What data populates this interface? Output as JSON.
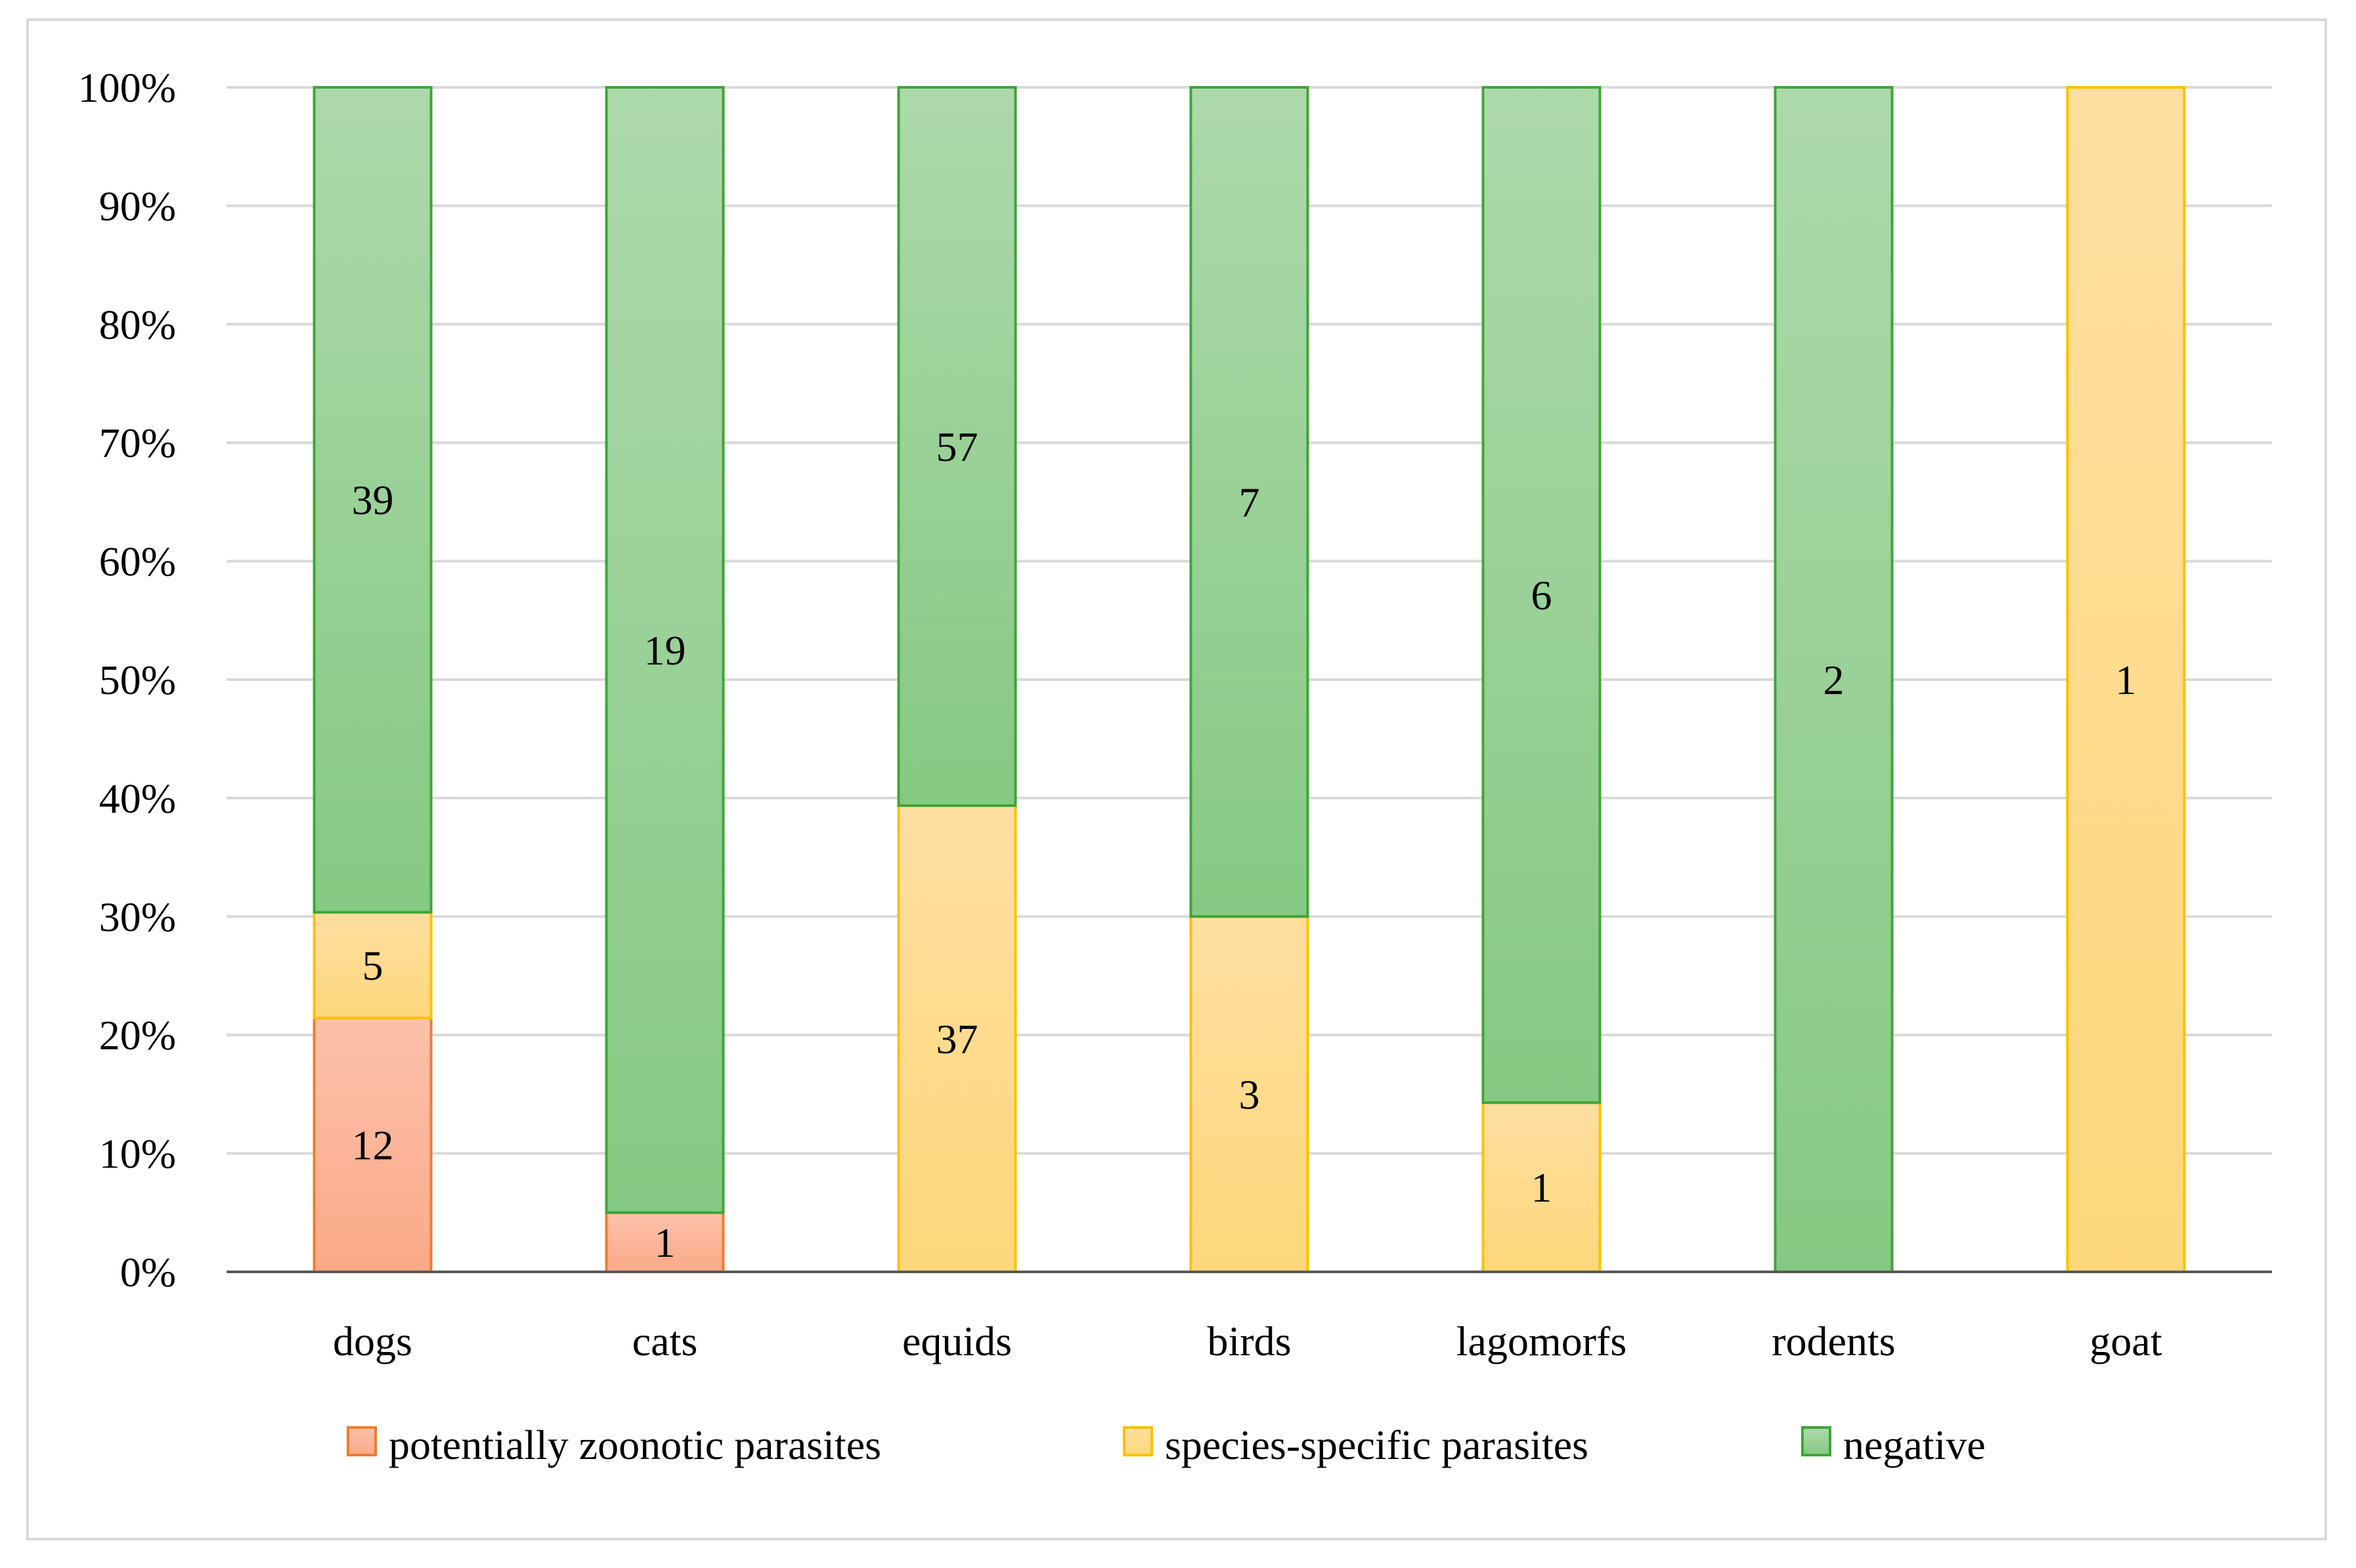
{
  "chart_data": {
    "type": "bar",
    "stacked": true,
    "normalized": true,
    "title": "",
    "xlabel": "",
    "ylabel": "",
    "ylim": [
      0,
      100
    ],
    "ytick_labels": [
      "0%",
      "10%",
      "20%",
      "30%",
      "40%",
      "50%",
      "60%",
      "70%",
      "80%",
      "90%",
      "100%"
    ],
    "categories": [
      "dogs",
      "cats",
      "equids",
      "birds",
      "lagomorfs",
      "rodents",
      "goat"
    ],
    "series": [
      {
        "name": "potentially zoonotic parasites",
        "key": "zoonotic",
        "values": [
          12,
          1,
          0,
          0,
          0,
          0,
          0
        ]
      },
      {
        "name": "species-specific parasites",
        "key": "specific",
        "values": [
          5,
          0,
          37,
          3,
          1,
          0,
          1
        ]
      },
      {
        "name": "negative",
        "key": "negative",
        "values": [
          39,
          19,
          57,
          7,
          6,
          2,
          0
        ]
      }
    ],
    "legend": {
      "position": "bottom"
    },
    "grid": true
  },
  "colors": {
    "zoonotic_top": "#fcc1ab",
    "zoonotic_bottom": "#fba987",
    "zoonotic_stroke": "#ed7d31",
    "specific_top": "#fedfa1",
    "specific_bottom": "#fdd77a",
    "specific_stroke": "#ffc000",
    "negative_top": "#add9ab",
    "negative_bottom": "#86c983",
    "negative_stroke": "#3fa538",
    "grid": "#d9d9d9",
    "axis": "#595959"
  }
}
